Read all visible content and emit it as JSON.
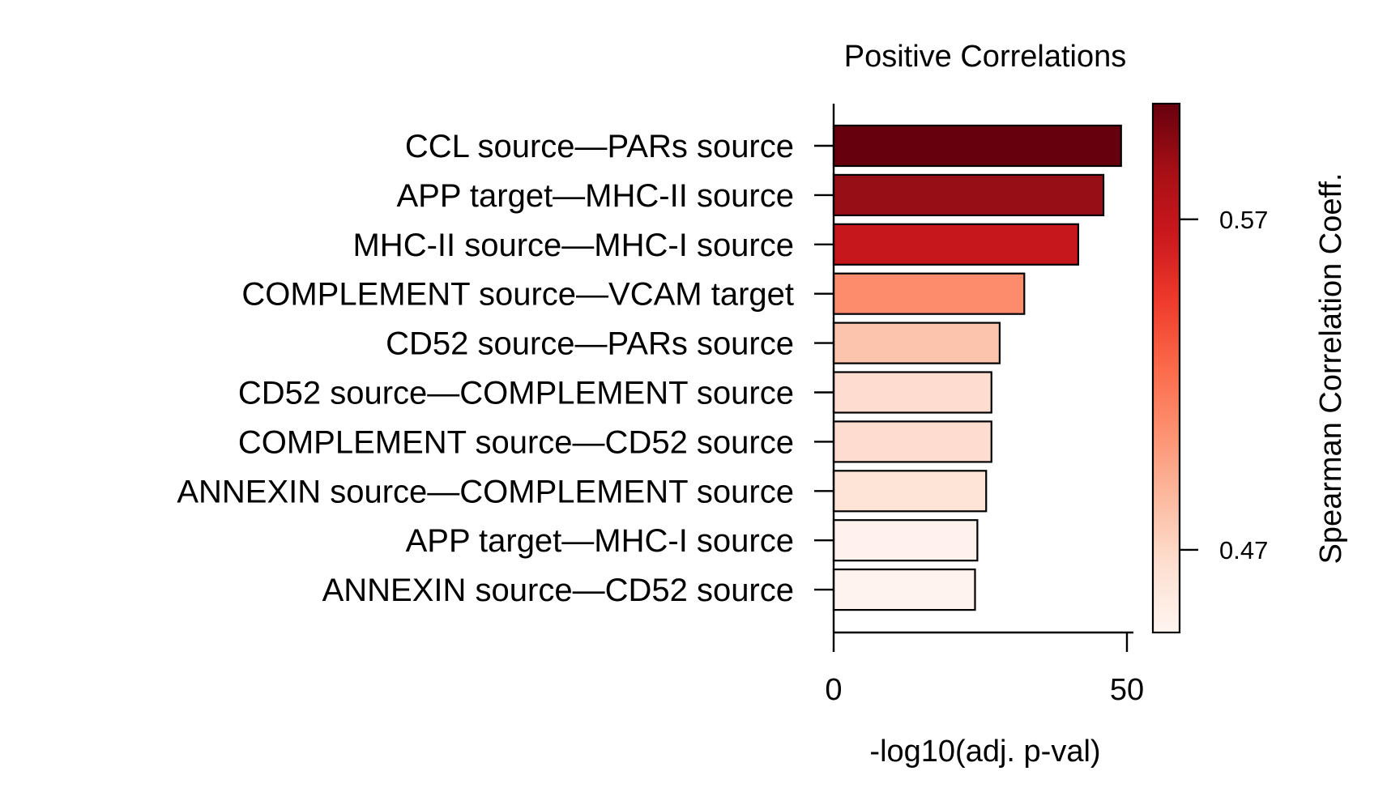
{
  "chart_data": {
    "type": "bar",
    "orientation": "horizontal",
    "title": "Positive Correlations",
    "xlabel": "-log10(adj. p-val)",
    "ylabel": "",
    "xlim": [
      0,
      51
    ],
    "xticks": [
      0,
      50
    ],
    "categories": [
      "CCL source—PARs source",
      "APP target—MHC-II source",
      "MHC-II source—MHC-I source",
      "COMPLEMENT source—VCAM target",
      "CD52 source—PARs source",
      "CD52 source—COMPLEMENT source",
      "COMPLEMENT source—CD52 source",
      "ANNEXIN source—COMPLEMENT source",
      "APP target—MHC-I source",
      "ANNEXIN source—CD52 source"
    ],
    "values": [
      49,
      46,
      41.7,
      32.5,
      28.3,
      26.9,
      26.9,
      26.0,
      24.5,
      24.1
    ],
    "colors": [
      "#67000d",
      "#960f16",
      "#c6171c",
      "#fc8c6c",
      "#fcc4ad",
      "#fedccf",
      "#fedccf",
      "#fee4d7",
      "#fff2ec",
      "#fff3ee"
    ],
    "colorbar": {
      "label": "Spearman Correlation Coeff.",
      "ticks": [
        0.57,
        0.47
      ],
      "range": [
        0.445,
        0.605
      ],
      "cmap": "Reds"
    },
    "grid": false,
    "legend": "none"
  }
}
